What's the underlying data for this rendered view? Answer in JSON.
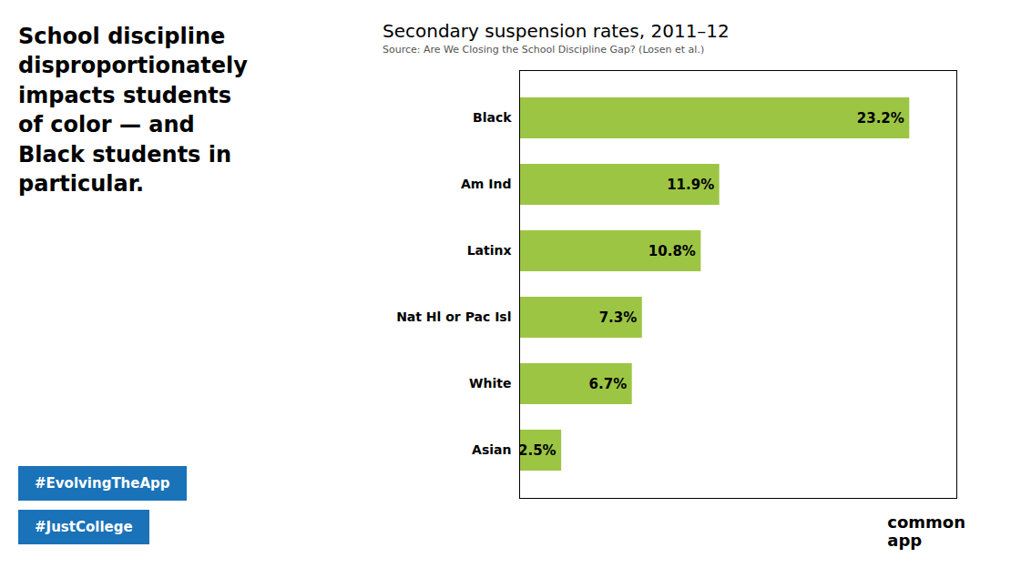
{
  "chart_data": {
    "type": "bar",
    "orientation": "horizontal",
    "title": "Secondary suspension rates, 2011–12",
    "subtitle": "Source: Are We Closing the School Discipline Gap? (Losen et al.)",
    "annotations": [
      "School discipline\ndisproportionately\nimpacts students\nof color — and\nBlack students in\nparticular.",
      "#EvolvingTheApp",
      "#JustCollege",
      "common\napp"
    ],
    "categories": [
      "Black",
      "Am Ind",
      "Latinx",
      "Nat Hl or Pac Isl",
      "White",
      "Asian"
    ],
    "values": [
      23.2,
      11.9,
      10.8,
      7.3,
      6.7,
      2.5
    ],
    "value_labels": [
      "23.2%",
      "11.9%",
      "10.8%",
      "7.3%",
      "6.7%",
      "2.5%"
    ],
    "data_labels": true,
    "color": "#9dc544",
    "xlim": [
      0,
      26
    ],
    "tick_labels": "y",
    "grid": false
  }
}
